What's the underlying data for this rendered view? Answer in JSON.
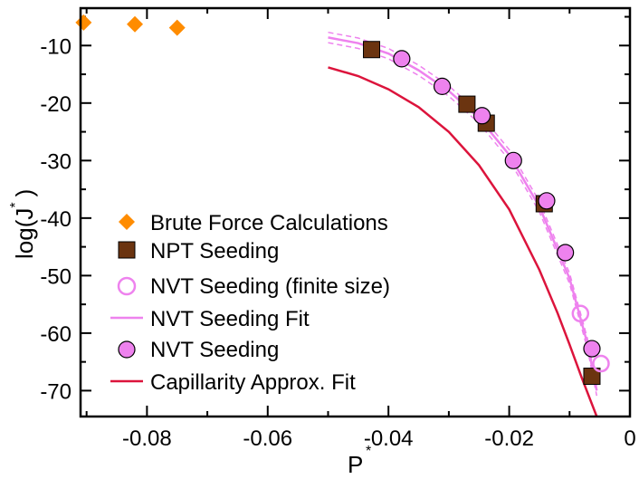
{
  "chart_data": {
    "type": "scatter",
    "title": "",
    "xlabel": "P",
    "xlabel_sup": "*",
    "ylabel_main": "log(J",
    "ylabel_sup": "*",
    "ylabel_close": ")",
    "xlim": [
      -0.091,
      0.0
    ],
    "ylim": [
      -74.5,
      -3.5
    ],
    "xticks": [
      -0.08,
      -0.06,
      -0.04,
      -0.02,
      0
    ],
    "xtick_labels": [
      "-0.08",
      "-0.06",
      "-0.04",
      "-0.02",
      "0"
    ],
    "yticks": [
      -10,
      -20,
      -30,
      -40,
      -50,
      -60,
      -70
    ],
    "ytick_labels": [
      "-10",
      "-20",
      "-30",
      "-40",
      "-50",
      "-60",
      "-70"
    ],
    "legend_position": "lower-left",
    "series": [
      {
        "name": "Brute Force Calculations",
        "kind": "diamond",
        "color": "#ff8c00",
        "x": [
          -0.0905,
          -0.082,
          -0.075
        ],
        "y": [
          -6.0,
          -6.3,
          -6.9
        ]
      },
      {
        "name": "NPT Seeding",
        "kind": "square",
        "color": "#6b3410",
        "x": [
          -0.0428,
          -0.027,
          -0.0238,
          -0.0142,
          -0.0063
        ],
        "y": [
          -10.7,
          -20.2,
          -23.5,
          -37.5,
          -67.5
        ]
      },
      {
        "name": "NVT Seeding (finite size)",
        "kind": "open-circle",
        "color": "#ee82ee",
        "x": [
          -0.0082,
          -0.0048
        ],
        "y": [
          -56.6,
          -65.3
        ]
      },
      {
        "name": "NVT Seeding Fit",
        "kind": "line",
        "color": "#ee82ee",
        "x": [
          -0.05,
          -0.045,
          -0.04,
          -0.035,
          -0.03,
          -0.025,
          -0.02,
          -0.015,
          -0.01,
          -0.007,
          -0.0055
        ],
        "y": [
          -8.6,
          -9.6,
          -11.4,
          -14.3,
          -17.9,
          -22.6,
          -29.0,
          -38.0,
          -50.5,
          -62.0,
          -70.0
        ],
        "band": 0.9
      },
      {
        "name": "NVT Seeding",
        "kind": "circle",
        "color": "#ee82ee",
        "x": [
          -0.0378,
          -0.0311,
          -0.0245,
          -0.0193,
          -0.0138,
          -0.0107,
          -0.0063
        ],
        "y": [
          -12.3,
          -17.1,
          -22.2,
          -30.0,
          -37.0,
          -46.0,
          -62.7
        ]
      },
      {
        "name": "Capillarity Approx. Fit",
        "kind": "line",
        "color": "#dc143c",
        "x": [
          -0.05,
          -0.045,
          -0.04,
          -0.035,
          -0.03,
          -0.025,
          -0.02,
          -0.015,
          -0.012,
          -0.01,
          -0.008,
          -0.0055
        ],
        "y": [
          -13.8,
          -15.3,
          -17.6,
          -20.7,
          -25.0,
          -30.8,
          -38.5,
          -49.0,
          -56.5,
          -62.0,
          -67.7,
          -74.5
        ]
      }
    ]
  }
}
